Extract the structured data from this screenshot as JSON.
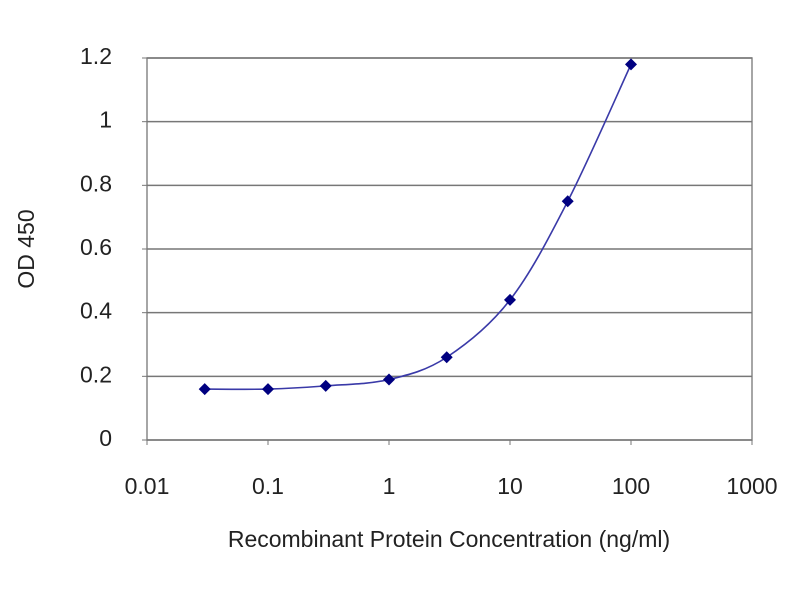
{
  "chart_data": {
    "type": "scatter",
    "x_label": "Recombinant Protein Concentration (ng/ml)",
    "y_label": "OD 450",
    "x_scale": "log",
    "xlim": [
      0.01,
      1000
    ],
    "xticks": [
      0.01,
      0.1,
      1,
      10,
      100,
      1000
    ],
    "ylim": [
      0,
      1.2
    ],
    "yticks": [
      0,
      0.2,
      0.4,
      0.6,
      0.8,
      1,
      1.2
    ],
    "grid": true,
    "series": [
      {
        "marker_color": "#000080",
        "color": "#3a3aa8",
        "x": [
          0.03,
          0.1,
          0.3,
          1,
          3,
          10,
          30,
          100
        ],
        "values": [
          0.16,
          0.16,
          0.17,
          0.19,
          0.26,
          0.44,
          0.75,
          1.18
        ]
      }
    ]
  }
}
